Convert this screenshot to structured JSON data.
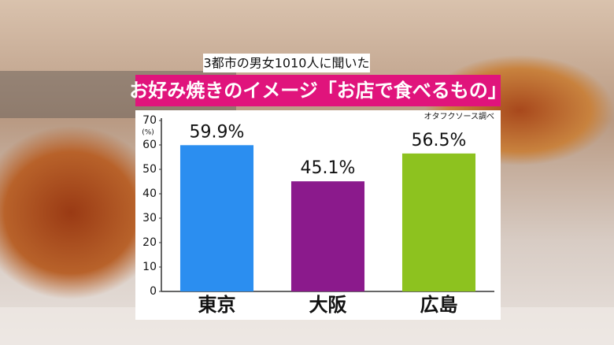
{
  "chart_data": {
    "type": "bar",
    "title": "お好み焼きのイメージ「お店で食べるもの」",
    "subtitle": "3都市の男女1010人に聞いた",
    "source": "オタフクソース調べ",
    "y_label": "(%)",
    "categories": [
      "東京",
      "大阪",
      "広島"
    ],
    "values": [
      59.9,
      45.1,
      56.5
    ],
    "value_labels": [
      "59.9%",
      "45.1%",
      "56.5%"
    ],
    "colors": [
      "#2b8ef0",
      "#8b1a8c",
      "#8dc21f"
    ],
    "ylim": [
      0,
      70
    ],
    "yticks": [
      0,
      10,
      20,
      30,
      40,
      50,
      60,
      70
    ],
    "grid": false
  }
}
